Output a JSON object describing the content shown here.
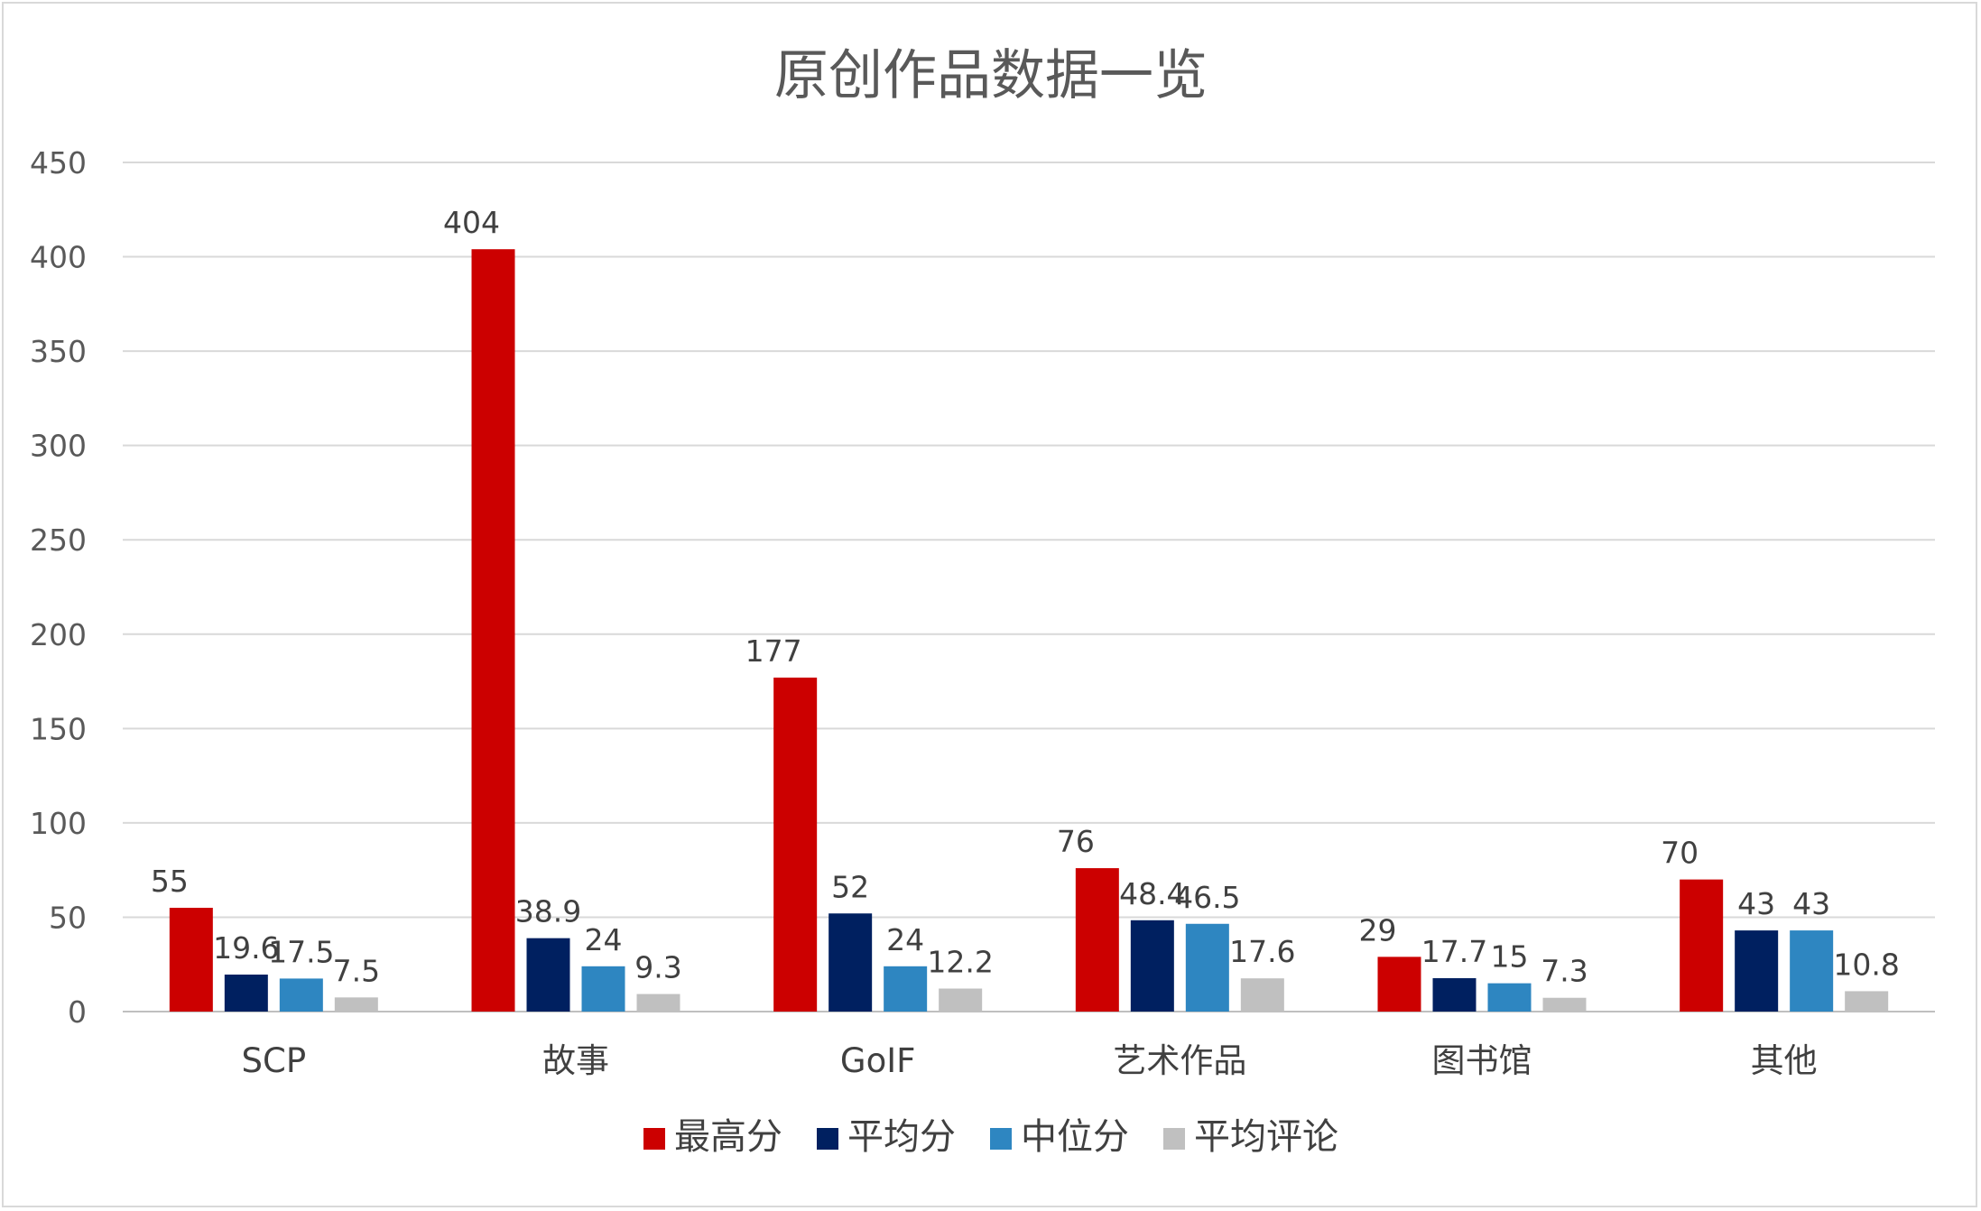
{
  "chart_data": {
    "type": "bar",
    "title": "原创作品数据一览",
    "xlabel": "",
    "ylabel": "",
    "categories": [
      "SCP",
      "故事",
      "GoIF",
      "艺术作品",
      "图书馆",
      "其他"
    ],
    "series": [
      {
        "name": "最高分",
        "color": "#cc0000",
        "values": [
          55,
          404,
          177,
          76,
          29,
          70
        ],
        "labels": [
          "55",
          "404",
          "177",
          "76",
          "29",
          "70"
        ]
      },
      {
        "name": "平均分",
        "color": "#002060",
        "values": [
          19.6,
          38.9,
          52,
          48.4,
          17.7,
          43
        ],
        "labels": [
          "19.6",
          "38.9",
          "52",
          "48.4",
          "17.7",
          "43"
        ]
      },
      {
        "name": "中位分",
        "color": "#2e86c1",
        "values": [
          17.5,
          24,
          24,
          46.5,
          15,
          43
        ],
        "labels": [
          "17.5",
          "24",
          "24",
          "46.5",
          "15",
          "43"
        ]
      },
      {
        "name": "平均评论",
        "color": "#c0c0c0",
        "values": [
          7.5,
          9.3,
          12.2,
          17.6,
          7.3,
          10.8
        ],
        "labels": [
          "7.5",
          "9.3",
          "12.2",
          "17.6",
          "7.3",
          "10.8"
        ]
      }
    ],
    "ylim": [
      0,
      450
    ],
    "yticks": [
      0,
      50,
      100,
      150,
      200,
      250,
      300,
      350,
      400,
      450
    ],
    "ytick_labels": [
      "0",
      "50",
      "100",
      "150",
      "200",
      "250",
      "300",
      "350",
      "400",
      "450"
    ],
    "grid": true,
    "legend_position": "bottom",
    "data_labels": true
  }
}
